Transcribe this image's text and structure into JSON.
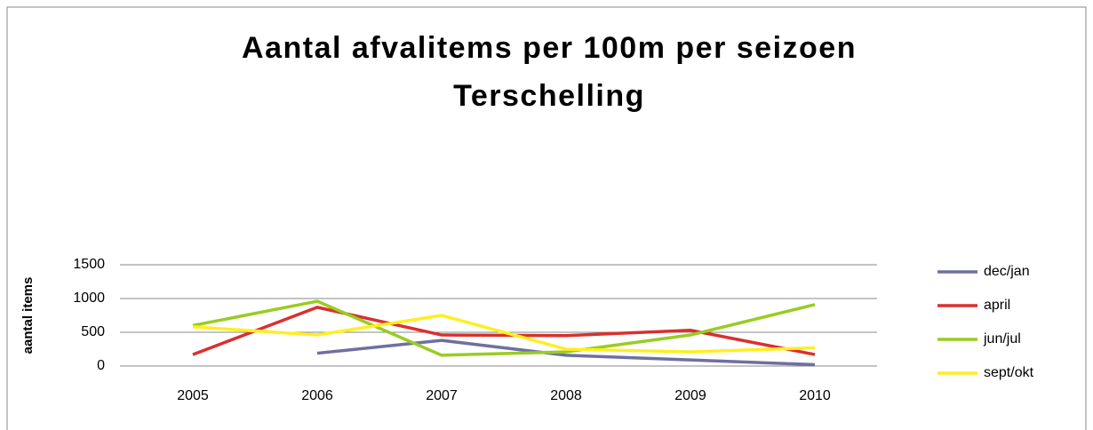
{
  "chart_data": {
    "type": "line",
    "title": [
      "Aantal afvalitems per 100m per seizoen",
      "Terschelling"
    ],
    "y_label": "aantal items",
    "categories": [
      "2005",
      "2006",
      "2007",
      "2008",
      "2009",
      "2010"
    ],
    "series": [
      {
        "name": "dec/jan",
        "color": "#6f6fa0",
        "values": [
          null,
          190,
          380,
          160,
          90,
          20
        ]
      },
      {
        "name": "april",
        "color": "#d9302e",
        "values": [
          170,
          870,
          460,
          450,
          530,
          170
        ]
      },
      {
        "name": "jun/jul",
        "color": "#99cc22",
        "values": [
          600,
          960,
          160,
          210,
          460,
          910
        ]
      },
      {
        "name": "sept/okt",
        "color": "#ffee22",
        "values": [
          580,
          460,
          750,
          250,
          210,
          270
        ]
      }
    ],
    "ylim": [
      0,
      1500
    ],
    "yticks": [
      0,
      500,
      1000,
      1500
    ],
    "grid": true,
    "legend": "right"
  }
}
